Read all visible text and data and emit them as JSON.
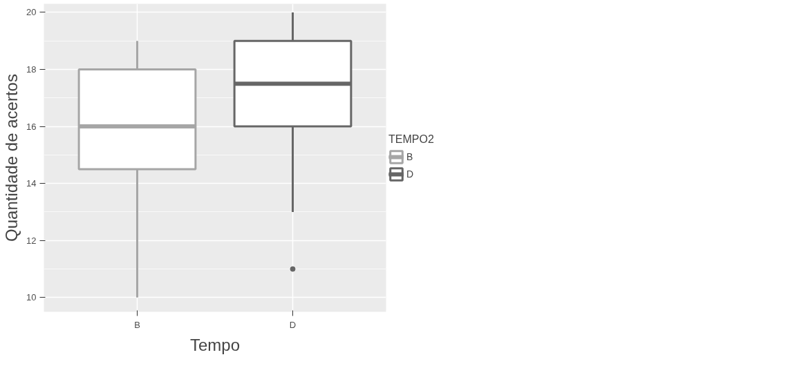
{
  "chart_data": {
    "type": "box",
    "xlabel": "Tempo",
    "ylabel": "Quantidade de acertos",
    "legend_title": "TEMPO2",
    "categories": [
      "B",
      "D"
    ],
    "series": [
      {
        "name": "B",
        "color": "#a6a6a6",
        "boxes": [
          {
            "low": 10,
            "q1": 14.5,
            "median": 16,
            "q3": 18,
            "high": 19
          },
          null
        ]
      },
      {
        "name": "D",
        "color": "#666666",
        "boxes": [
          null,
          {
            "low": 13,
            "q1": 16,
            "median": 17.5,
            "q3": 19,
            "high": 20,
            "outliers": [
              11
            ]
          }
        ]
      }
    ],
    "ylim": [
      9.5,
      20.3
    ],
    "yticks": [
      10,
      12,
      14,
      16,
      18,
      20
    ],
    "grid": true,
    "legend": "right"
  }
}
